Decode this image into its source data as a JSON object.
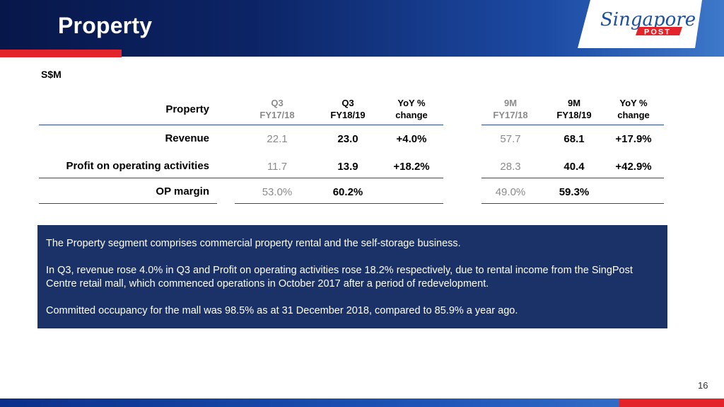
{
  "header": {
    "title": "Property"
  },
  "logo": {
    "script_text": "Singapore",
    "badge_text": "POST"
  },
  "unit_label": "S$M",
  "table": {
    "row_header": "Property",
    "columns_left": [
      {
        "line1": "Q3",
        "line2": "FY17/18"
      },
      {
        "line1": "Q3",
        "line2": "FY18/19"
      },
      {
        "line1": "YoY %",
        "line2": "change"
      }
    ],
    "columns_right": [
      {
        "line1": "9M",
        "line2": "FY17/18"
      },
      {
        "line1": "9M",
        "line2": "FY18/19"
      },
      {
        "line1": "YoY %",
        "line2": "change"
      }
    ],
    "rows": [
      {
        "label": "Revenue",
        "q3_prev": "22.1",
        "q3_curr": "23.0",
        "q3_yoy": "+4.0%",
        "m9_prev": "57.7",
        "m9_curr": "68.1",
        "m9_yoy": "+17.9%"
      },
      {
        "label": "Profit on operating activities",
        "q3_prev": "11.7",
        "q3_curr": "13.9",
        "q3_yoy": "+18.2%",
        "m9_prev": "28.3",
        "m9_curr": "40.4",
        "m9_yoy": "+42.9%"
      },
      {
        "label": "OP margin",
        "q3_prev": "53.0%",
        "q3_curr": "60.2%",
        "q3_yoy": "",
        "m9_prev": "49.0%",
        "m9_curr": "59.3%",
        "m9_yoy": ""
      }
    ]
  },
  "infobox": {
    "paragraphs": [
      "The Property segment comprises commercial property rental and the self-storage business.",
      "In Q3, revenue rose 4.0% in Q3 and Profit on operating activities rose 18.2% respectively, due to rental income from the SingPost Centre retail mall, which commenced operations in October 2017 after a period of redevelopment.",
      "Committed occupancy for the mall was 98.5% as at 31 December 2018, compared to 85.9% a year ago."
    ]
  },
  "page_number": "16",
  "colors": {
    "navy": "#0c2466",
    "accent_red": "#e3242b",
    "box_blue": "#1b3268",
    "rule_blue": "#2a4a8a"
  }
}
